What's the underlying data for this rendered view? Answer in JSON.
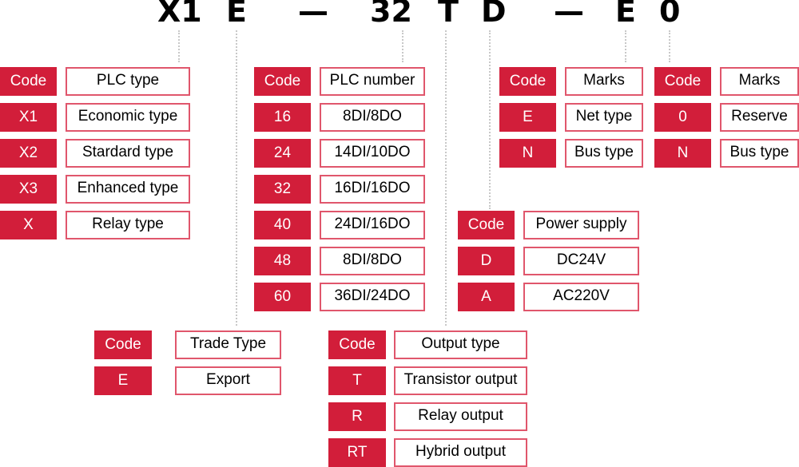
{
  "model_code": [
    "X1",
    "E",
    "—",
    "32",
    "T",
    "D",
    "—",
    "E",
    "0"
  ],
  "colors": {
    "code_fill": "#d21e3a",
    "desc_border": "#e0566c",
    "connector": "#c8c8c8"
  },
  "groups": [
    {
      "id": "plc-type",
      "rows": [
        [
          "Code",
          "PLC type"
        ],
        [
          "X1",
          "Economic type"
        ],
        [
          "X2",
          "Stardard type"
        ],
        [
          "X3",
          "Enhanced type"
        ],
        [
          "X",
          "Relay type"
        ]
      ]
    },
    {
      "id": "plc-number",
      "rows": [
        [
          "Code",
          "PLC number"
        ],
        [
          "16",
          "8DI/8DO"
        ],
        [
          "24",
          "14DI/10DO"
        ],
        [
          "32",
          "16DI/16DO"
        ],
        [
          "40",
          "24DI/16DO"
        ],
        [
          "48",
          "8DI/8DO"
        ],
        [
          "60",
          "36DI/24DO"
        ]
      ]
    },
    {
      "id": "marks-e",
      "rows": [
        [
          "Code",
          "Marks"
        ],
        [
          "E",
          "Net type"
        ],
        [
          "N",
          "Bus type"
        ]
      ]
    },
    {
      "id": "marks-0",
      "rows": [
        [
          "Code",
          "Marks"
        ],
        [
          "0",
          "Reserve"
        ],
        [
          "N",
          "Bus type"
        ]
      ]
    },
    {
      "id": "power-supply",
      "rows": [
        [
          "Code",
          "Power supply"
        ],
        [
          "D",
          "DC24V"
        ],
        [
          "A",
          "AC220V"
        ]
      ]
    },
    {
      "id": "trade-type",
      "rows": [
        [
          "Code",
          "Trade Type"
        ],
        [
          "E",
          "Export"
        ]
      ]
    },
    {
      "id": "output-type",
      "rows": [
        [
          "Code",
          "Output type"
        ],
        [
          "T",
          "Transistor output"
        ],
        [
          "R",
          "Relay output"
        ],
        [
          "RT",
          "Hybrid output"
        ]
      ]
    }
  ]
}
